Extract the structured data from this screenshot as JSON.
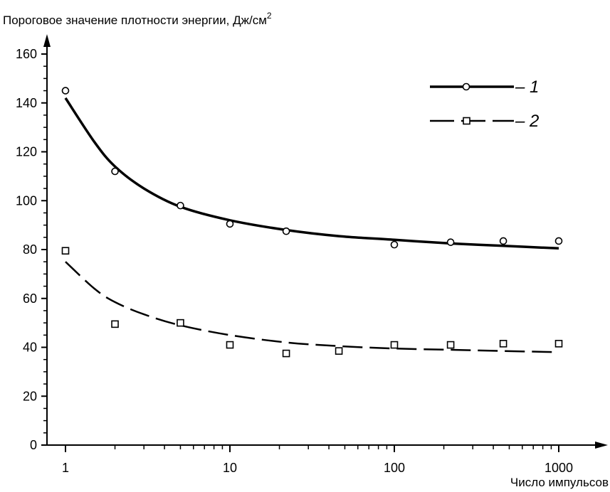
{
  "chart_data": {
    "type": "scatter",
    "ylabel": "Пороговое значение плотности энергии, Дж/см",
    "ylabel_sup": "2",
    "xlabel": "Число импульсов",
    "x_scale": "log",
    "xlim": [
      1,
      1000
    ],
    "ylim": [
      0,
      160
    ],
    "x_ticks": [
      1,
      10,
      100,
      1000
    ],
    "x_tick_labels": [
      "1",
      "10",
      "100",
      "1000"
    ],
    "y_ticks": [
      0,
      20,
      40,
      60,
      80,
      100,
      120,
      140,
      160
    ],
    "y_tick_labels": [
      "0",
      "20",
      "40",
      "60",
      "80",
      "100",
      "120",
      "140",
      "160"
    ],
    "legend_position": "top-right",
    "grid": false,
    "series": [
      {
        "name": "– 1",
        "marker": "circle",
        "line_style": "solid",
        "points": [
          {
            "x": 1,
            "y": 145
          },
          {
            "x": 2,
            "y": 112
          },
          {
            "x": 5,
            "y": 98
          },
          {
            "x": 10,
            "y": 90.5
          },
          {
            "x": 22,
            "y": 87.5
          },
          {
            "x": 100,
            "y": 82
          },
          {
            "x": 220,
            "y": 83
          },
          {
            "x": 460,
            "y": 83.5
          },
          {
            "x": 1000,
            "y": 83.5
          }
        ],
        "fit_curve": [
          {
            "x": 1,
            "y": 142
          },
          {
            "x": 1.5,
            "y": 124
          },
          {
            "x": 2,
            "y": 114
          },
          {
            "x": 3,
            "y": 105
          },
          {
            "x": 5,
            "y": 97.5
          },
          {
            "x": 10,
            "y": 92
          },
          {
            "x": 22,
            "y": 88
          },
          {
            "x": 46,
            "y": 85.5
          },
          {
            "x": 100,
            "y": 84
          },
          {
            "x": 220,
            "y": 82.5
          },
          {
            "x": 460,
            "y": 81.5
          },
          {
            "x": 1000,
            "y": 80.5
          }
        ]
      },
      {
        "name": "– 2",
        "marker": "square",
        "line_style": "dashed",
        "points": [
          {
            "x": 1,
            "y": 79.5
          },
          {
            "x": 2,
            "y": 49.5
          },
          {
            "x": 5,
            "y": 50
          },
          {
            "x": 10,
            "y": 41
          },
          {
            "x": 22,
            "y": 37.5
          },
          {
            "x": 46,
            "y": 38.5
          },
          {
            "x": 100,
            "y": 41
          },
          {
            "x": 220,
            "y": 41
          },
          {
            "x": 460,
            "y": 41.5
          },
          {
            "x": 1000,
            "y": 41.5
          }
        ],
        "fit_curve": [
          {
            "x": 1,
            "y": 75
          },
          {
            "x": 1.5,
            "y": 64
          },
          {
            "x": 2,
            "y": 58.5
          },
          {
            "x": 3,
            "y": 53.5
          },
          {
            "x": 5,
            "y": 49
          },
          {
            "x": 10,
            "y": 45
          },
          {
            "x": 22,
            "y": 42
          },
          {
            "x": 46,
            "y": 40.5
          },
          {
            "x": 100,
            "y": 39.5
          },
          {
            "x": 220,
            "y": 39
          },
          {
            "x": 460,
            "y": 38.5
          },
          {
            "x": 1000,
            "y": 38
          }
        ]
      }
    ]
  }
}
